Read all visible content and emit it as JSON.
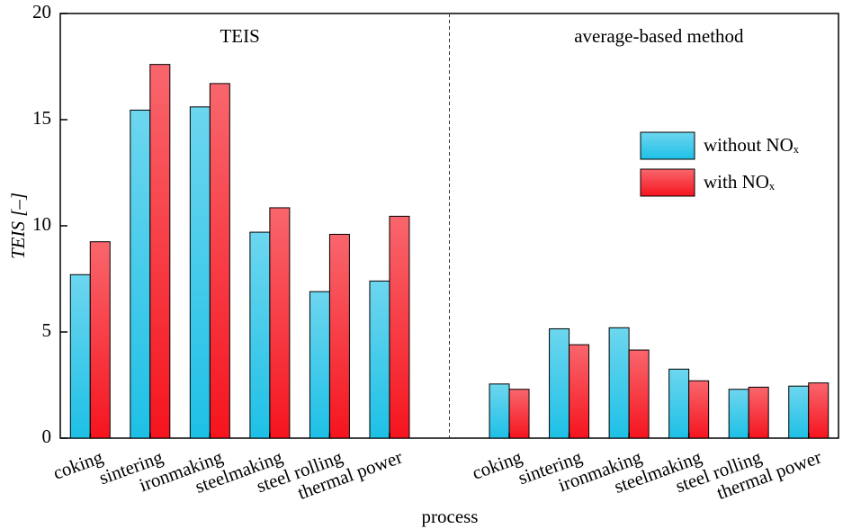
{
  "chart_data": {
    "type": "grouped-bar",
    "ylabel": "TEIS [–]",
    "xlabel": "process",
    "ylim": [
      0,
      20
    ],
    "yticks": [
      0,
      5,
      10,
      15,
      20
    ],
    "legend_position": "upper right",
    "series": [
      {
        "name": "without NOₓ",
        "color": "#1ec0e6"
      },
      {
        "name": "with NOₓ",
        "color": "#f5141e"
      }
    ],
    "groups": [
      {
        "label": "TEIS",
        "categories": [
          "coking",
          "sintering",
          "ironmaking",
          "steelmaking",
          "steel rolling",
          "thermal power"
        ],
        "values": [
          [
            7.7,
            15.45,
            15.6,
            9.7,
            6.9,
            7.4
          ],
          [
            9.25,
            17.6,
            16.7,
            10.85,
            9.6,
            10.45
          ]
        ]
      },
      {
        "label": "average-based method",
        "categories": [
          "coking",
          "sintering",
          "ironmaking",
          "steelmaking",
          "steel rolling",
          "thermal power"
        ],
        "values": [
          [
            2.55,
            5.15,
            5.2,
            3.25,
            2.3,
            2.45
          ],
          [
            2.3,
            4.4,
            4.15,
            2.7,
            2.4,
            2.6
          ]
        ]
      }
    ]
  }
}
